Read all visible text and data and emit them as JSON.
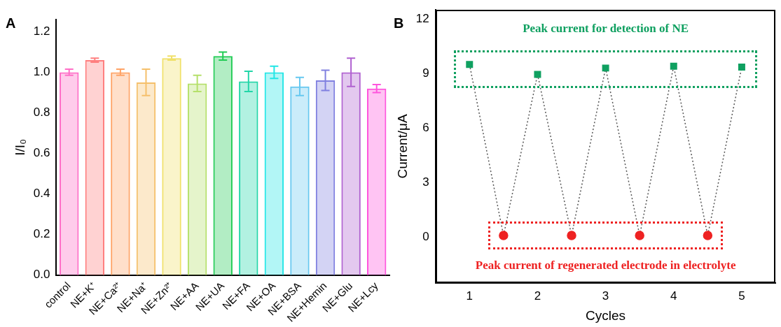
{
  "chart_data": [
    {
      "type": "bar",
      "annotations": [
        "A"
      ],
      "ylabel": "I/I₀",
      "categories": [
        "control",
        "NE+K⁺",
        "NE+Ca²⁺",
        "NE+Na⁺",
        "NE+Zn²⁺",
        "NE+AA",
        "NE+UA",
        "NE+FA",
        "NE+OA",
        "NE+BSA",
        "NE+Hemin",
        "NE+Glu",
        "NE+Lcy"
      ],
      "values": [
        1.0,
        1.06,
        1.0,
        0.95,
        1.07,
        0.945,
        1.08,
        0.955,
        1.0,
        0.93,
        0.96,
        1.0,
        0.92
      ],
      "errors": [
        0.015,
        0.01,
        0.015,
        0.065,
        0.01,
        0.04,
        0.02,
        0.05,
        0.03,
        0.045,
        0.05,
        0.07,
        0.02
      ],
      "colors": [
        "#ff6ec7",
        "#ff7f7f",
        "#ffa366",
        "#f5c06b",
        "#f0e068",
        "#b5e06a",
        "#22cc55",
        "#22d6a8",
        "#22e6e6",
        "#66c8f0",
        "#8080e0",
        "#b060d0",
        "#ff55dd"
      ],
      "ylim": [
        0,
        1.26
      ],
      "yticks": [
        {
          "value": 0,
          "label": "0.0"
        },
        0.2,
        0.4,
        0.6,
        0.8,
        {
          "value": 1,
          "label": "1.0"
        },
        1.2
      ],
      "legend": false
    },
    {
      "type": "line",
      "annotations": [
        "B",
        "Peak current for detection of NE",
        "Peak current of regenerated electrode in electrolyte"
      ],
      "xlabel": "Cycles",
      "ylabel": "Current/μA",
      "series": [
        {
          "type": "line",
          "color": "#444444",
          "line_style": "dotted",
          "marker": "none",
          "x": [
            1,
            1.5,
            2,
            2.5,
            3,
            3.5,
            4,
            4.5,
            5
          ],
          "values": [
            9.5,
            0.1,
            8.95,
            0.1,
            9.3,
            0.1,
            9.4,
            0.1,
            9.35
          ]
        },
        {
          "type": "scatter",
          "color": "#0fa060",
          "marker": "square",
          "x": [
            1,
            2,
            3,
            4,
            5
          ],
          "values": [
            9.5,
            8.95,
            9.3,
            9.4,
            9.35
          ]
        },
        {
          "type": "scatter",
          "color": "#ee2222",
          "marker": "circle",
          "x": [
            1.5,
            2.5,
            3.5,
            4.5
          ],
          "values": [
            0.1,
            0.1,
            0.1,
            0.1
          ]
        }
      ],
      "xlim": [
        0.5,
        5.5
      ],
      "xticks": [
        1,
        2,
        3,
        4,
        5
      ],
      "ylim": [
        -2.5,
        12.5
      ],
      "yticks": [
        0,
        3,
        6,
        9,
        12
      ],
      "legend": false
    }
  ]
}
